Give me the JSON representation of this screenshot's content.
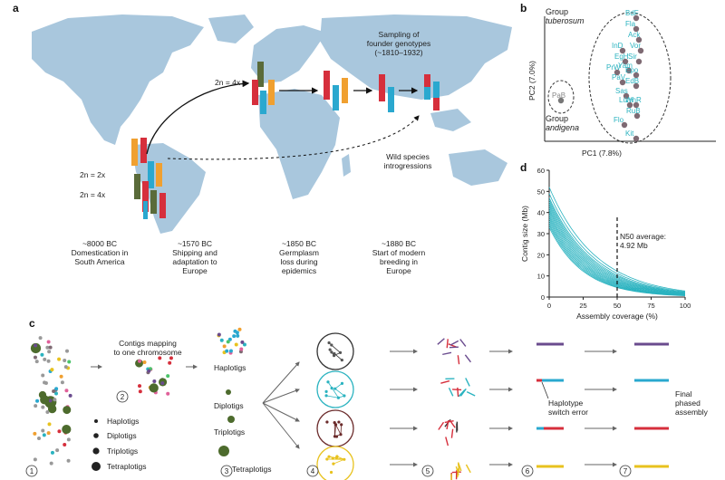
{
  "figure": {
    "panel_a": {
      "letter": "a",
      "ploidy_top": "2n = 4x",
      "ploidy_left_2x": "2n = 2x",
      "ploidy_left_4x": "2n = 4x",
      "sampling_line1": "Sampling of",
      "sampling_line2": "founder genotypes",
      "sampling_line3": "(~1810–1932)",
      "wild_line1": "Wild species",
      "wild_line2": "introgressions",
      "timeline": [
        {
          "date": "~8000 BC",
          "line1": "Domestication in",
          "line2": "South America",
          "line3": ""
        },
        {
          "date": "~1570 BC",
          "line1": "Shipping and",
          "line2": "adaptation to",
          "line3": "Europe"
        },
        {
          "date": "~1850 BC",
          "line1": "Germplasm",
          "line2": "loss during",
          "line3": "epidemics"
        },
        {
          "date": "~1880 BC",
          "line1": "Start of modern",
          "line2": "breeding in",
          "line3": "Europe"
        }
      ]
    },
    "panel_b": {
      "letter": "b",
      "group_tuberosum_1": "Group",
      "group_tuberosum_2": "tuberosum",
      "group_andigena_1": "Group",
      "group_andigena_2": "andigena",
      "ylabel": "PC2 (7.0%)",
      "xlabel": "PC1 (7.8%)",
      "points": [
        "BdF",
        "Fla",
        "Ack",
        "InD",
        "Vor",
        "EgH",
        "Sir",
        "Yam",
        "PrW",
        "Epo",
        "PaV",
        "EdB",
        "Sas",
        "Lum",
        "WhR",
        "RuB",
        "Flo",
        "Kit",
        "PaB"
      ]
    },
    "panel_c": {
      "letter": "c",
      "contigs_line1": "Contigs mapping",
      "contigs_line2": "to one chromosome",
      "legend": [
        "Haplotigs",
        "Diplotigs",
        "Triplotigs",
        "Tetraplotigs"
      ],
      "haplotigs": "Haplotigs",
      "diplotigs": "Diplotigs",
      "triplotigs": "Triplotigs",
      "tetraplotigs": "Tetraplotigs",
      "switch_line1": "Haplotype",
      "switch_line2": "switch error",
      "final_line1": "Final",
      "final_line2": "phased",
      "final_line3": "assembly",
      "steps": [
        "1",
        "2",
        "3",
        "4",
        "5",
        "6",
        "7"
      ]
    },
    "panel_d": {
      "letter": "d",
      "n50_line1": "N50 average:",
      "n50_line2": "4.92 Mb"
    }
  },
  "chart_data": {
    "type": "line",
    "title": "",
    "xlabel": "Assembly coverage (%)",
    "ylabel": "Contig size (Mb)",
    "xlim": [
      0,
      100
    ],
    "ylim": [
      0,
      60
    ],
    "xticks": [
      "0",
      "25",
      "50",
      "75",
      "100"
    ],
    "yticks": [
      "0",
      "10",
      "20",
      "30",
      "40",
      "50",
      "60"
    ],
    "n50_x": 50,
    "series_start_sizes": [
      52,
      49,
      47,
      46,
      45,
      44,
      43,
      42,
      41,
      40,
      39,
      38,
      37,
      36,
      35,
      34,
      33
    ],
    "decay": 0.034
  },
  "colors": {
    "teal": "#2bb3c0",
    "map_land": "#a9c7dd",
    "gray_dot": "#7e6a73",
    "green_dot": "#4d6b2d",
    "red": "#d62f3c",
    "orange": "#f0a030",
    "blue": "#2aa8cf",
    "olive": "#5a6b3a",
    "purple": "#6a4b8e",
    "yellow": "#e8c21e"
  }
}
